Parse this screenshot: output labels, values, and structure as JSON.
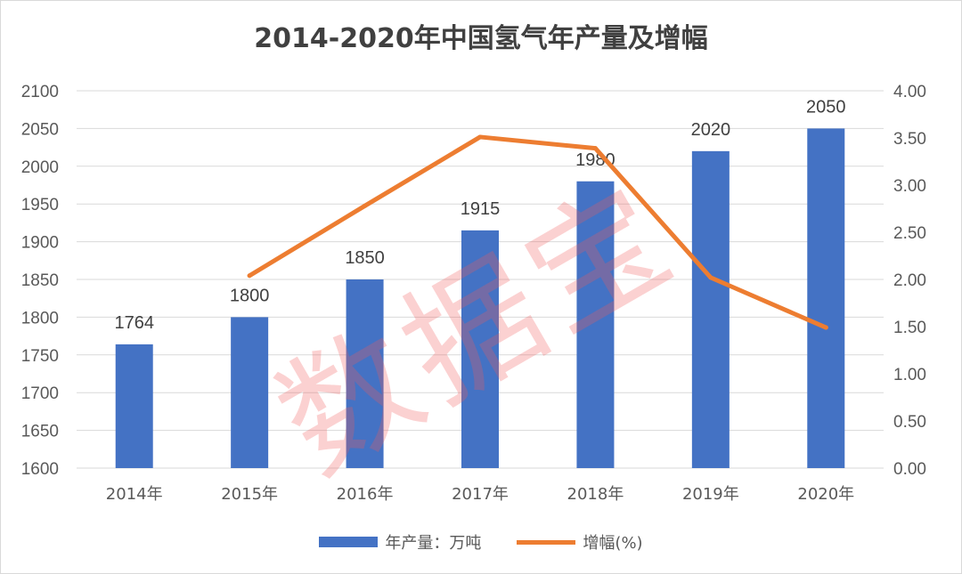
{
  "chart_data": {
    "type": "bar",
    "title": "2014-2020年中国氢气年产量及增幅",
    "categories": [
      "2014年",
      "2015年",
      "2016年",
      "2017年",
      "2018年",
      "2019年",
      "2020年"
    ],
    "series": [
      {
        "name": "年产量：万吨",
        "type": "bar",
        "axis": "left",
        "color": "#4472c4",
        "values": [
          1764,
          1800,
          1850,
          1915,
          1980,
          2020,
          2050
        ],
        "data_labels": [
          "1764",
          "1800",
          "1850",
          "1915",
          "1980",
          "2020",
          "2050"
        ]
      },
      {
        "name": "增幅(%)",
        "type": "line",
        "axis": "right",
        "color": "#ed7d31",
        "values": [
          null,
          2.04,
          2.78,
          3.51,
          3.39,
          2.02,
          1.49
        ]
      }
    ],
    "y_left": {
      "min": 1600,
      "max": 2100,
      "ticks": [
        "1600",
        "1650",
        "1700",
        "1750",
        "1800",
        "1850",
        "1900",
        "1950",
        "2000",
        "2050",
        "2100"
      ]
    },
    "y_right": {
      "min": 0,
      "max": 4,
      "ticks": [
        "0.00",
        "0.50",
        "1.00",
        "1.50",
        "2.00",
        "2.50",
        "3.00",
        "3.50",
        "4.00"
      ]
    },
    "grid": true,
    "legend_position": "bottom"
  },
  "watermark": "数据宝"
}
